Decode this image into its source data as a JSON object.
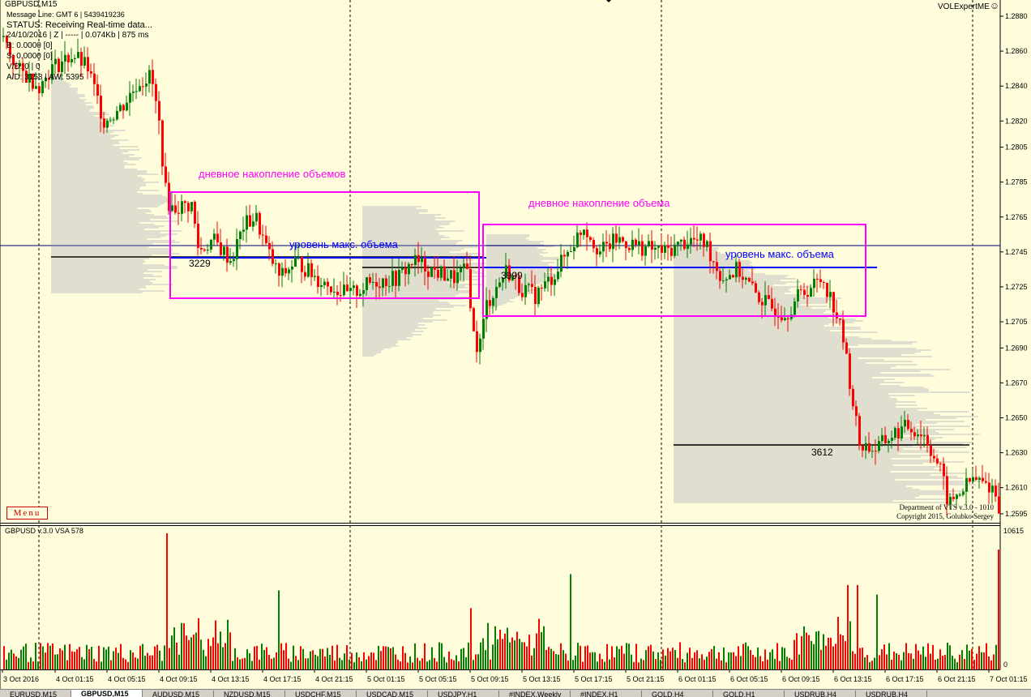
{
  "window": {
    "title": "GBPUSD,M15",
    "expert": "VOLExpertME",
    "smile": "☺"
  },
  "info_lines": [
    "Message Line: GMT 6  |  5439419236",
    "STATUS:  Receiving Real-time data...",
    "24/10/2016 | Z | ----- | 0.074Kb | 875 ms",
    "B: 0.0000   [0]",
    "S: 0.0000   [0]",
    "V/D: 0 | 0",
    "A/D: 3158 | AW: 5395"
  ],
  "price_axis": {
    "min": 1.2595,
    "max": 1.2885,
    "labels": [
      "1.2880",
      "1.2860",
      "1.2840",
      "1.2820",
      "1.2805",
      "1.2785",
      "1.2765",
      "1.2745",
      "1.2725",
      "1.2705",
      "1.2690",
      "1.2670",
      "1.2650",
      "1.2630",
      "1.2610",
      "1.2595"
    ]
  },
  "time_axis": {
    "labels": [
      "3 Oct 2016",
      "4 Oct 01:15",
      "4 Oct 05:15",
      "4 Oct 09:15",
      "4 Oct 13:15",
      "4 Oct 17:15",
      "4 Oct 21:15",
      "5 Oct 01:15",
      "5 Oct 05:15",
      "5 Oct 09:15",
      "5 Oct 13:15",
      "5 Oct 17:15",
      "5 Oct 21:15",
      "6 Oct 01:15",
      "6 Oct 05:15",
      "6 Oct 09:15",
      "6 Oct 13:15",
      "6 Oct 17:15",
      "6 Oct 21:15",
      "7 Oct 01:15"
    ]
  },
  "annotations": {
    "box1_title": "дневное накопление объемов",
    "box2_title": "дневное накопление объема",
    "max_level_1": "уровень макс. объема",
    "max_level_2": "уровень макс. объема",
    "poc_labels": [
      "3229",
      "3999",
      "3612"
    ]
  },
  "indicator": {
    "title": "GBPUSD v.3.0 VSA 578",
    "max_label": "10615",
    "zero_label": "0"
  },
  "menu_label": "Menu",
  "copyright": [
    "Department of VTS  v.3.0 - 1010",
    "Copyright 2015, Golubko Sergey"
  ],
  "tabs": [
    "EURUSD,M15",
    "GBPUSD,M15",
    "AUDUSD,M15",
    "NZDUSD,M15",
    "USDCHF,M15",
    "USDCAD,M15",
    "USDJPY,H1",
    "#INDEX,Weekly",
    "#INDEX,H1",
    "GOLD,H4",
    "GOLD,H1",
    "USDRUB,H4",
    "USDRUB,H4"
  ],
  "active_tab": 1,
  "colors": {
    "background": "#fffddc",
    "bull": "#008000",
    "bear": "#ff0000",
    "box": "#ff00ff",
    "max_volume_line": "#0000ff",
    "horizontal_line": "#000080",
    "profile": "#c0c0c0"
  }
}
